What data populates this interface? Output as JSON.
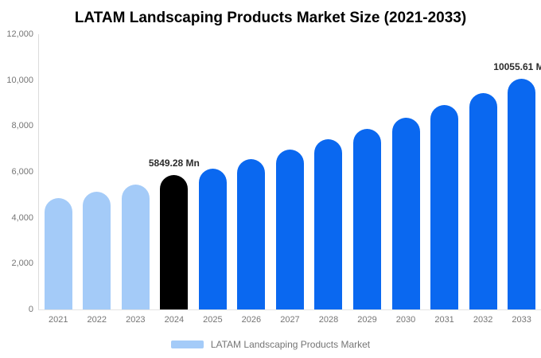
{
  "title": "LATAM Landscaping Products Market Size (2021-2033)",
  "colors": {
    "bar_light_blue": "#a4cbf8",
    "bar_blue": "#0a68f0",
    "bar_black": "#000000",
    "axis_line": "#dcdcdc",
    "tick_text": "#757575",
    "value_label_text": "#2b2b2b",
    "title_text": "#000000"
  },
  "legend": {
    "label": "LATAM Landscaping Products Market",
    "swatch_color": "#a4cbf8"
  },
  "chart_data": {
    "type": "bar",
    "title": "LATAM Landscaping Products Market Size (2021-2033)",
    "categories": [
      "2021",
      "2022",
      "2023",
      "2024",
      "2025",
      "2026",
      "2027",
      "2028",
      "2029",
      "2030",
      "2031",
      "2032",
      "2033"
    ],
    "series": [
      {
        "name": "LATAM Landscaping Products Market",
        "values": [
          4850,
          5130,
          5440,
          5849.28,
          6140,
          6560,
          6980,
          7430,
          7880,
          8370,
          8900,
          9420,
          10055.61
        ]
      }
    ],
    "unit": "Mn",
    "xlabel": "",
    "ylabel": "",
    "ylim": [
      0,
      12000
    ],
    "ytick_labels": [
      "12,000",
      "10,000",
      "8,000",
      "6,000",
      "4,000",
      "2,000",
      "0"
    ],
    "grid": false,
    "legend_position": "bottom",
    "bar_colors": [
      "#a4cbf8",
      "#a4cbf8",
      "#a4cbf8",
      "#000000",
      "#0a68f0",
      "#0a68f0",
      "#0a68f0",
      "#0a68f0",
      "#0a68f0",
      "#0a68f0",
      "#0a68f0",
      "#0a68f0",
      "#0a68f0"
    ],
    "data_labels": [
      "",
      "",
      "",
      "5849.28 Mn",
      "",
      "",
      "",
      "",
      "",
      "",
      "",
      "",
      "10055.61 Mn"
    ]
  }
}
